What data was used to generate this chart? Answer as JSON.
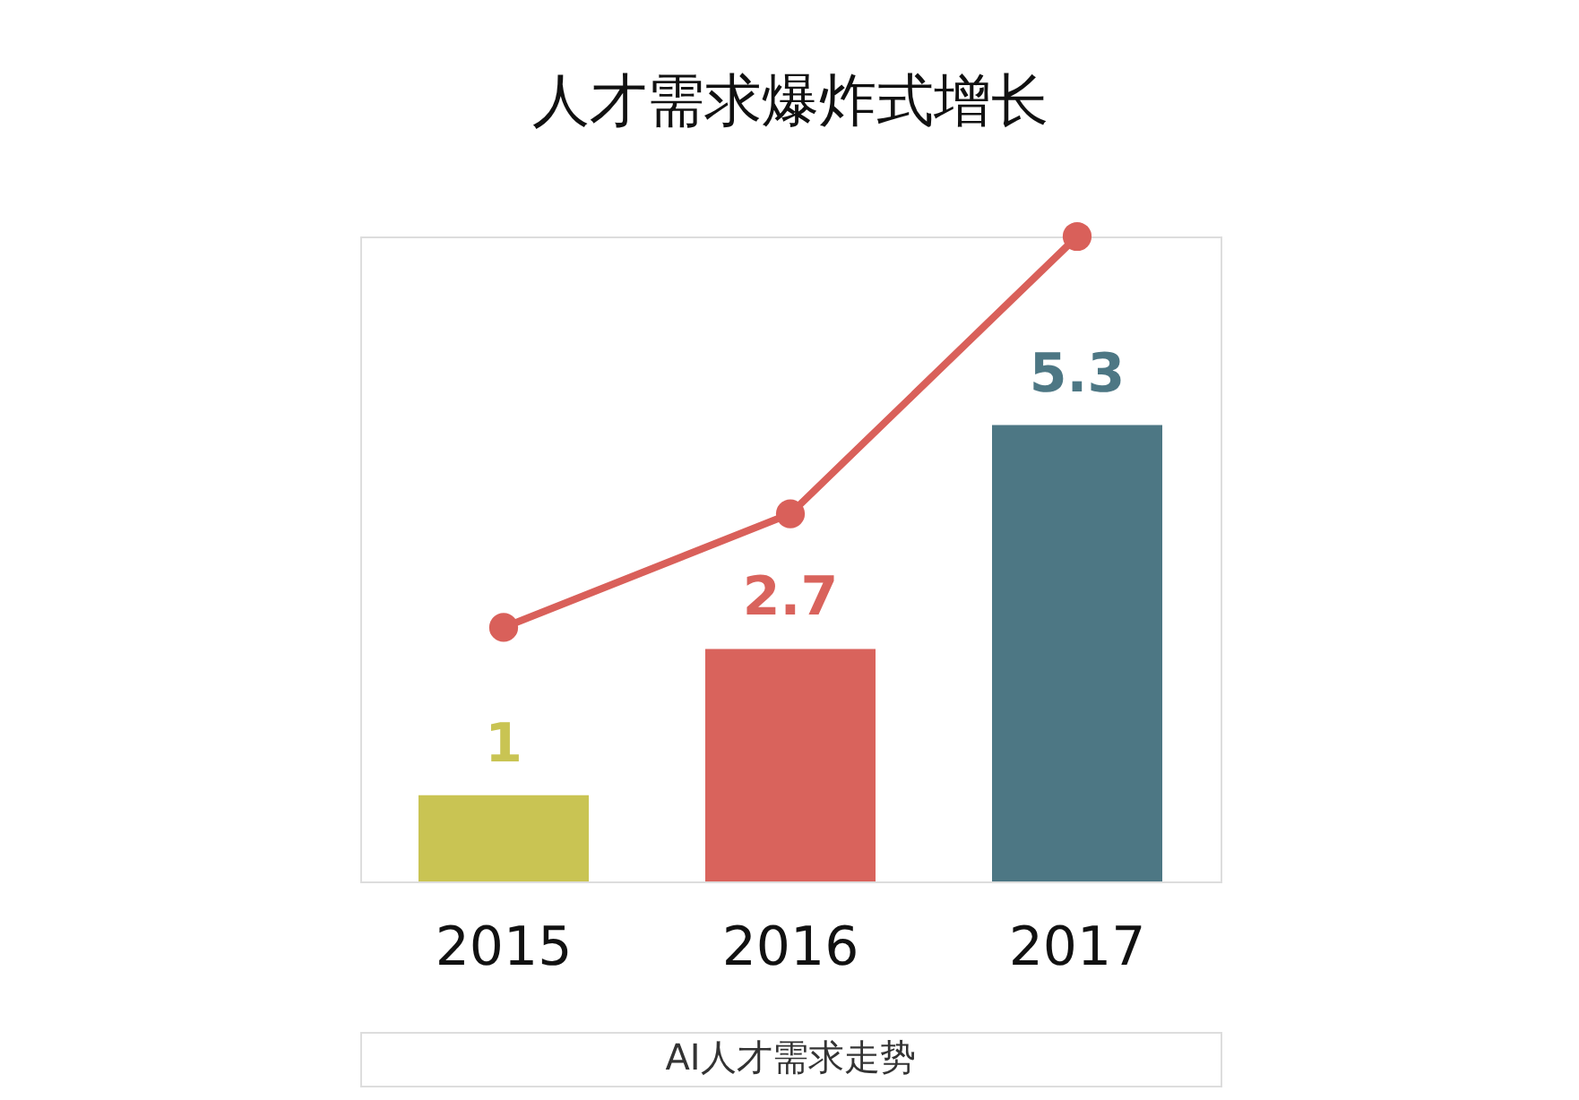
{
  "chart_data": {
    "type": "bar",
    "title": "人才需求爆炸式增长",
    "categories": [
      "2015",
      "2016",
      "2017"
    ],
    "marker": "circle",
    "grid": false,
    "annotations": [
      "AI人才需求走势"
    ],
    "series": [
      {
        "colors": [
          "#c9c453",
          "#d9635c",
          "#4d7784"
        ],
        "values": [
          1,
          2.7,
          5.3
        ],
        "value_labels": [
          "1",
          "2.7",
          "5.3"
        ]
      },
      {
        "type": "line",
        "color": "#d9605a",
        "values": [
          2.95,
          4.27,
          7.49
        ]
      }
    ]
  }
}
